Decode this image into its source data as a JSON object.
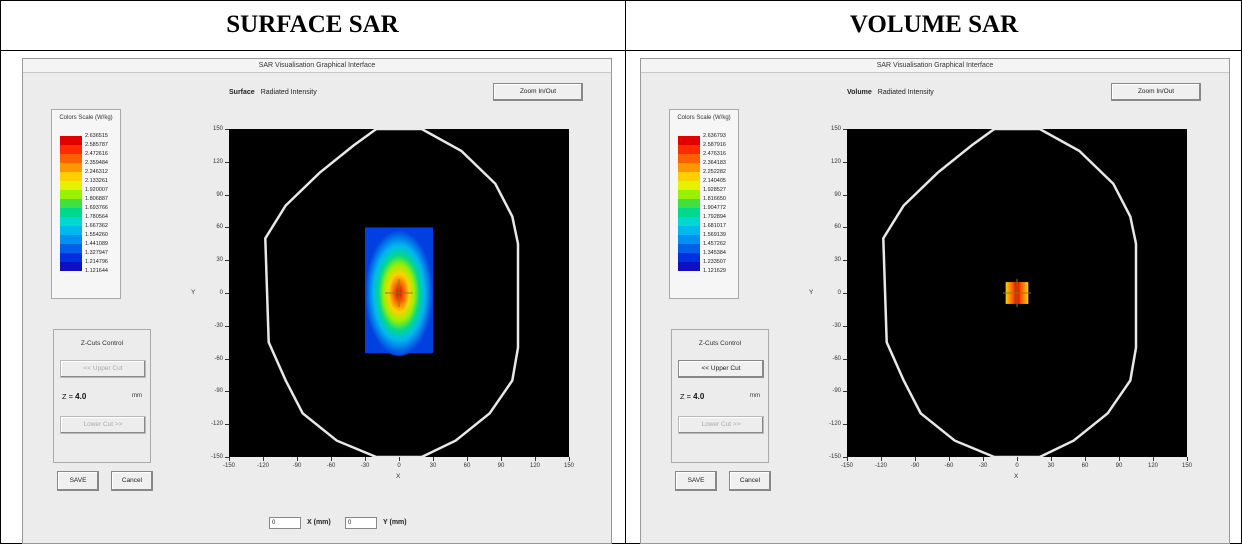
{
  "headers": {
    "left": "SURFACE SAR",
    "right": "VOLUME SAR"
  },
  "window_title": "SAR Visualisation Graphical Interface",
  "color_scale": {
    "title": "Colors Scale (W/kg)",
    "colors": [
      "#e00000",
      "#ff2a00",
      "#ff6000",
      "#ff9800",
      "#ffd000",
      "#e8f000",
      "#9af000",
      "#40e040",
      "#00d88c",
      "#00d8d0",
      "#00b8f0",
      "#0090f0",
      "#0060e8",
      "#0030e0",
      "#1010c0"
    ]
  },
  "panels": [
    {
      "id": "surface",
      "plot_mode": "Surface",
      "plot_quantity": "Radiated Intensity",
      "zoom_label": "Zoom In/Out",
      "scale_values": [
        "2.636515",
        "2.585787",
        "2.472616",
        "2.359484",
        "2.246312",
        "2.133261",
        "1.920007",
        "1.806887",
        "1.693766",
        "1.780564",
        "1.667362",
        "1.554260",
        "1.441089",
        "1.327947",
        "1.214796",
        "1.121644"
      ],
      "zcut_title": "Z-Cuts Control",
      "upper_cut_label": "<< Upper Cut",
      "lower_cut_label": "Lower Cut >>",
      "z_prefix": "Z =",
      "z_value": "4.0",
      "z_unit": "mm",
      "save_label": "SAVE",
      "cancel_label": "Cancel",
      "upper_enabled": false,
      "x_label": "X",
      "y_label": "Y",
      "show_bottom_inputs": true,
      "x_input": "0",
      "y_input": "0",
      "x_mm_label": "X (mm)",
      "y_mm_label": "Y (mm)",
      "sar_region": {
        "x": [
          -30,
          30
        ],
        "y": [
          -55,
          60
        ],
        "type": "gradient"
      }
    },
    {
      "id": "volume",
      "plot_mode": "Volume",
      "plot_quantity": "Radiated Intensity",
      "zoom_label": "Zoom In/Out",
      "scale_values": [
        "2.636793",
        "2.587916",
        "2.476316",
        "2.364183",
        "2.252282",
        "2.140405",
        "1.928527",
        "1.816650",
        "1.904772",
        "1.792894",
        "1.681017",
        "1.569139",
        "1.457262",
        "1.345384",
        "1.233507",
        "1.121629"
      ],
      "zcut_title": "Z-Cuts Control",
      "upper_cut_label": "<< Upper Cut",
      "lower_cut_label": "Lower Cut >>",
      "z_prefix": "Z =",
      "z_value": "4.0",
      "z_unit": "mm",
      "save_label": "SAVE",
      "cancel_label": "Cancel",
      "upper_enabled": true,
      "x_label": "X",
      "y_label": "Y",
      "show_bottom_inputs": false,
      "sar_region": {
        "x": [
          -10,
          10
        ],
        "y": [
          -10,
          10
        ],
        "type": "volume"
      }
    }
  ],
  "axis": {
    "y_ticks": [
      "150",
      "120",
      "90",
      "60",
      "30",
      "0",
      "-30",
      "-60",
      "-90",
      "-120",
      "-150"
    ],
    "x_ticks": [
      "-150",
      "-120",
      "-90",
      "-60",
      "-30",
      "0",
      "30",
      "60",
      "90",
      "120",
      "150"
    ],
    "range": [
      -150,
      150
    ]
  },
  "phantom_outline": [
    [
      -20,
      150
    ],
    [
      20,
      150
    ],
    [
      55,
      130
    ],
    [
      85,
      100
    ],
    [
      100,
      70
    ],
    [
      105,
      45
    ],
    [
      105,
      -50
    ],
    [
      100,
      -80
    ],
    [
      80,
      -110
    ],
    [
      50,
      -135
    ],
    [
      20,
      -150
    ],
    [
      -20,
      -150
    ],
    [
      -55,
      -135
    ],
    [
      -85,
      -110
    ],
    [
      -100,
      -80
    ],
    [
      -115,
      -45
    ],
    [
      -118,
      50
    ],
    [
      -100,
      80
    ],
    [
      -70,
      110
    ],
    [
      -40,
      135
    ]
  ]
}
